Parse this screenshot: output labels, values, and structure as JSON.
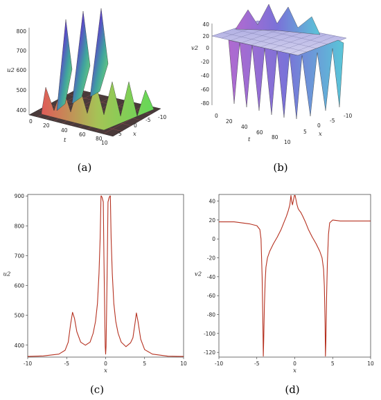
{
  "captions": [
    "(a)",
    "(b)",
    "(c)",
    "(d)"
  ],
  "chart_data": [
    {
      "type": "surface",
      "panel": "(a)",
      "zlabel": "u2",
      "xlabel": "x",
      "tlabel": "t",
      "z_ticks": [
        "400",
        "500",
        "600",
        "700",
        "800"
      ],
      "t_ticks": [
        "0",
        "20",
        "40",
        "60",
        "80"
      ],
      "x_ticks": [
        "10",
        "5",
        "0",
        "-5",
        "-10"
      ],
      "zlim": [
        360,
        900
      ]
    },
    {
      "type": "surface",
      "panel": "(b)",
      "zlabel": "v2",
      "xlabel": "x",
      "tlabel": "t",
      "z_ticks": [
        "40",
        "20",
        "0",
        "-20",
        "-40",
        "-60",
        "-80"
      ],
      "t_ticks": [
        "0",
        "20",
        "40",
        "60",
        "80"
      ],
      "x_ticks": [
        "10",
        "5",
        "0",
        "-5",
        "-10"
      ],
      "zlim": [
        -125,
        45
      ]
    },
    {
      "type": "line",
      "panel": "(c)",
      "xlabel": "x",
      "ylabel": "u2",
      "xlim": [
        -10,
        10
      ],
      "ylim": [
        360,
        905
      ],
      "x_ticks": [
        "-10",
        "-5",
        "0",
        "5",
        "10"
      ],
      "y_ticks": [
        "400",
        "500",
        "600",
        "700",
        "800",
        "900"
      ],
      "series": [
        {
          "color": "#b5301f",
          "x": [
            -10,
            -8,
            -6,
            -5.2,
            -4.8,
            -4.5,
            -4.25,
            -4.0,
            -3.7,
            -3.2,
            -2.6,
            -2.0,
            -1.6,
            -1.3,
            -1.05,
            -0.85,
            -0.7,
            -0.6,
            -0.55,
            -0.45,
            -0.3,
            -0.22,
            -0.12,
            -0.05,
            0.0,
            0.05,
            0.12,
            0.22,
            0.3,
            0.45,
            0.55,
            0.6,
            0.7,
            0.85,
            1.05,
            1.3,
            1.6,
            2.0,
            2.6,
            3.2,
            3.5,
            3.75,
            3.95,
            4.15,
            4.5,
            5.0,
            6,
            8,
            10
          ],
          "y": [
            362,
            364,
            370,
            383,
            410,
            470,
            510,
            490,
            445,
            410,
            400,
            410,
            440,
            480,
            540,
            640,
            760,
            900,
            900,
            895,
            880,
            700,
            500,
            395,
            370,
            395,
            500,
            700,
            880,
            895,
            900,
            900,
            760,
            640,
            540,
            480,
            440,
            410,
            395,
            408,
            425,
            470,
            508,
            480,
            420,
            385,
            370,
            363,
            362
          ]
        }
      ]
    },
    {
      "type": "line",
      "panel": "(d)",
      "xlabel": "x",
      "ylabel": "v2",
      "xlim": [
        -10,
        10
      ],
      "ylim": [
        -125,
        47
      ],
      "x_ticks": [
        "-10",
        "-5",
        "0",
        "5",
        "10"
      ],
      "y_ticks": [
        "40",
        "20",
        "0",
        "-20",
        "-40",
        "-60",
        "-80",
        "-100",
        "-120"
      ],
      "series": [
        {
          "color": "#b5301f",
          "x": [
            -10,
            -8,
            -6,
            -5.0,
            -4.6,
            -4.45,
            -4.3,
            -4.2,
            -4.15,
            -4.1,
            -4.0,
            -3.9,
            -3.8,
            -3.6,
            -3.3,
            -2.8,
            -2.3,
            -1.8,
            -1.4,
            -1.1,
            -0.85,
            -0.65,
            -0.5,
            -0.4,
            -0.3,
            -0.15,
            -0.05,
            0.05,
            0.15,
            0.3,
            0.45,
            0.6,
            0.8,
            1.05,
            1.4,
            1.8,
            2.3,
            2.8,
            3.3,
            3.6,
            3.8,
            3.9,
            4.0,
            4.05,
            4.1,
            4.2,
            4.3,
            4.45,
            4.6,
            5.0,
            6,
            8,
            10
          ],
          "y": [
            18,
            18,
            16,
            14,
            10,
            0,
            -40,
            -90,
            -124,
            -110,
            -70,
            -45,
            -30,
            -20,
            -13,
            -5,
            2,
            10,
            18,
            24,
            30,
            36,
            46,
            40,
            36,
            42,
            46,
            46,
            42,
            36,
            32,
            30,
            28,
            24,
            18,
            10,
            2,
            -5,
            -13,
            -20,
            -32,
            -50,
            -90,
            -124,
            -110,
            -60,
            -25,
            5,
            17,
            20,
            19,
            19,
            19
          ]
        }
      ]
    }
  ]
}
